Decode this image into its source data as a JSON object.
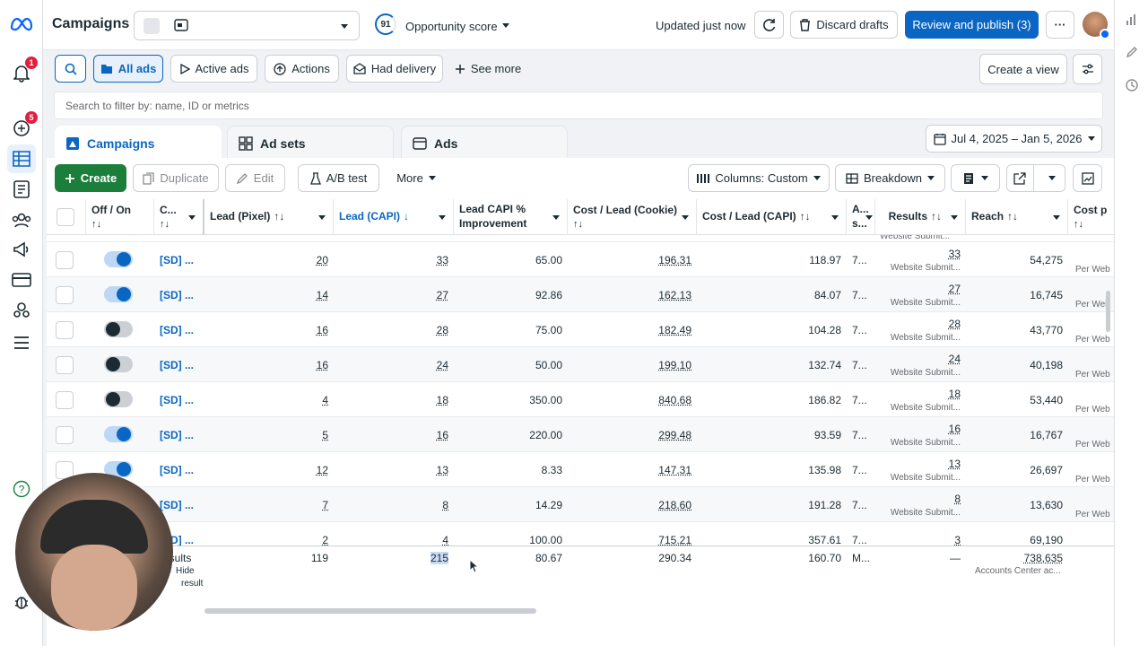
{
  "header": {
    "title": "Campaigns",
    "opportunity_score": "91",
    "opportunity_label": "Opportunity score",
    "updated_text": "Updated just now",
    "discard_label": "Discard drafts",
    "review_label": "Review and publish (3)",
    "more_label": "···"
  },
  "rail": {
    "notifications_badge": "1",
    "alerts_badge": "5"
  },
  "filters": {
    "all_ads": "All ads",
    "active_ads": "Active ads",
    "actions": "Actions",
    "had_delivery": "Had delivery",
    "see_more": "See more",
    "create_view": "Create a view",
    "search_placeholder": "Search to filter by: name, ID or metrics"
  },
  "tabs": {
    "campaigns": "Campaigns",
    "ad_sets": "Ad sets",
    "ads": "Ads"
  },
  "date_range": "Jul 4, 2025 – Jan 5, 2026",
  "toolbar": {
    "create": "Create",
    "duplicate": "Duplicate",
    "edit": "Edit",
    "ab_test": "A/B test",
    "more": "More",
    "columns": "Columns: Custom",
    "breakdown": "Breakdown"
  },
  "columns": {
    "off_on": "Off / On",
    "campaign": "C...",
    "lead_pixel": "Lead (Pixel)",
    "lead_capi": "Lead (CAPI)",
    "lead_capi_improvement": "Lead CAPI % Improvement",
    "cost_lead_cookie": "Cost / Lead (Cookie)",
    "cost_lead_capi": "Cost / Lead (CAPI)",
    "attribution": "A... s...",
    "results": "Results",
    "reach": "Reach",
    "cost_per": "Cost p"
  },
  "rows": [
    {
      "on": true,
      "name": "[SD] ...",
      "lead_pixel": "20",
      "lead_capi": "33",
      "improvement": "65.00",
      "cost_cookie": "196.31",
      "cost_capi": "118.97",
      "attr": "7...",
      "results": "33",
      "results_sub": "Website Submit...",
      "reach": "54,275",
      "cost_sub": "Per Web"
    },
    {
      "on": true,
      "name": "[SD] ...",
      "lead_pixel": "14",
      "lead_capi": "27",
      "improvement": "92.86",
      "cost_cookie": "162.13",
      "cost_capi": "84.07",
      "attr": "7...",
      "results": "27",
      "results_sub": "Website Submit...",
      "reach": "16,745",
      "cost_sub": "Per Web"
    },
    {
      "on": false,
      "name": "[SD] ...",
      "lead_pixel": "16",
      "lead_capi": "28",
      "improvement": "75.00",
      "cost_cookie": "182.49",
      "cost_capi": "104.28",
      "attr": "7...",
      "results": "28",
      "results_sub": "Website Submit...",
      "reach": "43,770",
      "cost_sub": "Per Web"
    },
    {
      "on": false,
      "name": "[SD] ...",
      "lead_pixel": "16",
      "lead_capi": "24",
      "improvement": "50.00",
      "cost_cookie": "199.10",
      "cost_capi": "132.74",
      "attr": "7...",
      "results": "24",
      "results_sub": "Website Submit...",
      "reach": "40,198",
      "cost_sub": "Per Web"
    },
    {
      "on": false,
      "name": "[SD] ...",
      "lead_pixel": "4",
      "lead_capi": "18",
      "improvement": "350.00",
      "cost_cookie": "840.68",
      "cost_capi": "186.82",
      "attr": "7...",
      "results": "18",
      "results_sub": "Website Submit...",
      "reach": "53,440",
      "cost_sub": "Per Web"
    },
    {
      "on": true,
      "name": "[SD] ...",
      "lead_pixel": "5",
      "lead_capi": "16",
      "improvement": "220.00",
      "cost_cookie": "299.48",
      "cost_capi": "93.59",
      "attr": "7...",
      "results": "16",
      "results_sub": "Website Submit...",
      "reach": "16,767",
      "cost_sub": "Per Web"
    },
    {
      "on": true,
      "name": "[SD] ...",
      "lead_pixel": "12",
      "lead_capi": "13",
      "improvement": "8.33",
      "cost_cookie": "147.31",
      "cost_capi": "135.98",
      "attr": "7...",
      "results": "13",
      "results_sub": "Website Submit...",
      "reach": "26,697",
      "cost_sub": "Per Web"
    },
    {
      "on": true,
      "name": "[SD] ...",
      "lead_pixel": "7",
      "lead_capi": "8",
      "improvement": "14.29",
      "cost_cookie": "218.60",
      "cost_capi": "191.28",
      "attr": "7...",
      "results": "8",
      "results_sub": "Website Submit...",
      "reach": "13,630",
      "cost_sub": "Per Web"
    },
    {
      "on": true,
      "name": "[SD] ...",
      "lead_pixel": "2",
      "lead_capi": "4",
      "improvement": "100.00",
      "cost_cookie": "715.21",
      "cost_capi": "357.61",
      "attr": "7...",
      "results": "3",
      "results_sub": "",
      "reach": "69,190",
      "cost_sub": ""
    }
  ],
  "totals": {
    "label": "esults",
    "hide_label": "Hide",
    "result_label": "result",
    "lead_pixel": "119",
    "lead_capi": "215",
    "improvement": "80.67",
    "cost_cookie": "290.34",
    "cost_capi": "160.70",
    "attr": "M...",
    "results": "—",
    "reach": "738,635",
    "reach_sub": "Accounts Center ac..."
  }
}
